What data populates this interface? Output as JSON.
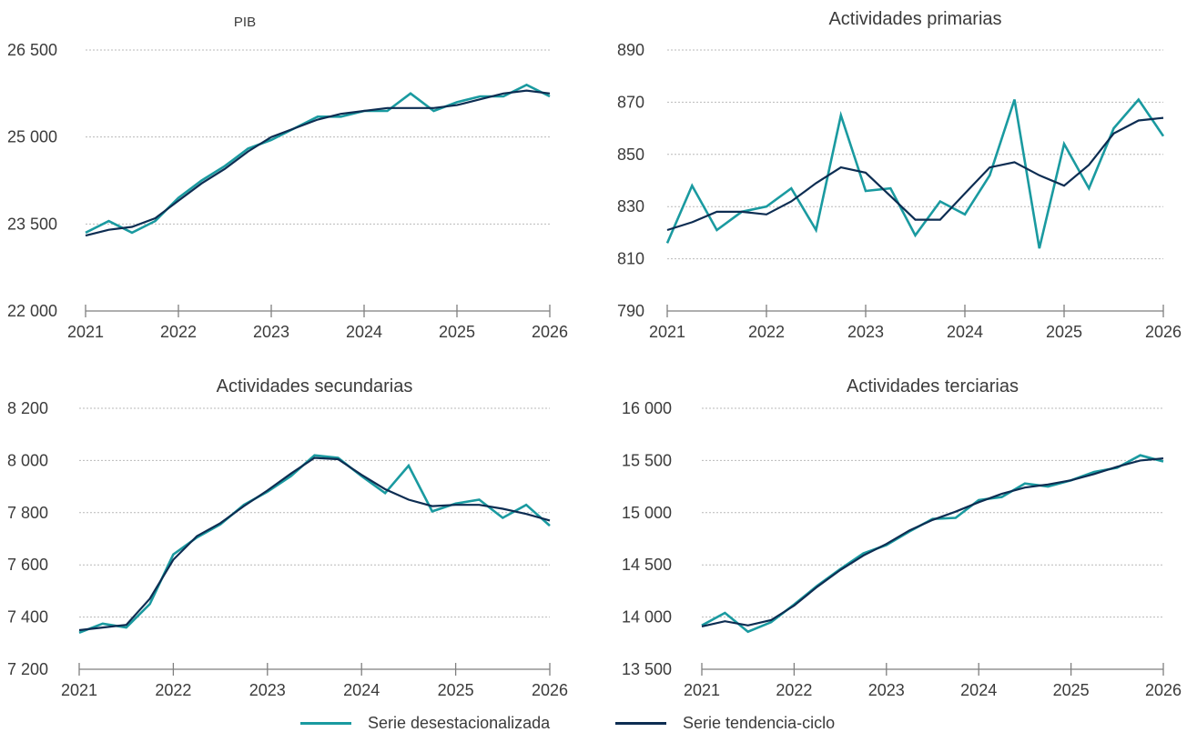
{
  "colors": {
    "desestacionalizada": "#1a9aa0",
    "tendencia": "#0d2d52",
    "axis": "#7f7f7f",
    "grid": "#b9b9b9",
    "text": "#3b3b3b"
  },
  "legend": {
    "series_1": "Serie desestacionalizada",
    "series_2": "Serie tendencia-ciclo"
  },
  "chart_data": [
    {
      "type": "line",
      "title": "PIB",
      "xlabel": "",
      "ylabel": "",
      "xlim": [
        2021,
        2026
      ],
      "ylim": [
        22000,
        26500
      ],
      "x_ticks": [
        "2021",
        "2022",
        "2023",
        "2024",
        "2025",
        "2026"
      ],
      "y_ticks": [
        "22 000",
        "23 500",
        "25 000",
        "26 500"
      ],
      "grid": true,
      "x": [
        2021.0,
        2021.25,
        2021.5,
        2021.75,
        2022.0,
        2022.25,
        2022.5,
        2022.75,
        2023.0,
        2023.25,
        2023.5,
        2023.75,
        2024.0,
        2024.25,
        2024.5,
        2024.75,
        2025.0,
        2025.25,
        2025.5,
        2025.75,
        2026.0
      ],
      "series": [
        {
          "name": "Serie desestacionalizada",
          "values": [
            23350,
            23550,
            23350,
            23550,
            23950,
            24250,
            24500,
            24800,
            24950,
            25150,
            25350,
            25350,
            25450,
            25450,
            25750,
            25450,
            25600,
            25700,
            25700,
            25900,
            25700
          ]
        },
        {
          "name": "Serie tendencia-ciclo",
          "values": [
            23300,
            23400,
            23450,
            23600,
            23900,
            24200,
            24450,
            24750,
            25000,
            25150,
            25300,
            25400,
            25450,
            25500,
            25500,
            25500,
            25550,
            25650,
            25750,
            25800,
            25750
          ]
        }
      ]
    },
    {
      "type": "line",
      "title": "Actividades primarias",
      "xlabel": "",
      "ylabel": "",
      "xlim": [
        2021,
        2026
      ],
      "ylim": [
        790,
        890
      ],
      "x_ticks": [
        "2021",
        "2022",
        "2023",
        "2024",
        "2025",
        "2026"
      ],
      "y_ticks": [
        "790",
        "810",
        "830",
        "850",
        "870",
        "890"
      ],
      "grid": true,
      "x": [
        2021.0,
        2021.25,
        2021.5,
        2021.75,
        2022.0,
        2022.25,
        2022.5,
        2022.75,
        2023.0,
        2023.25,
        2023.5,
        2023.75,
        2024.0,
        2024.25,
        2024.5,
        2024.75,
        2025.0,
        2025.25,
        2025.5,
        2025.75,
        2026.0
      ],
      "series": [
        {
          "name": "Serie desestacionalizada",
          "values": [
            816,
            838,
            821,
            828,
            830,
            837,
            821,
            865,
            836,
            837,
            819,
            832,
            827,
            842,
            871,
            814,
            854,
            837,
            860,
            871,
            857
          ]
        },
        {
          "name": "Serie tendencia-ciclo",
          "values": [
            821,
            824,
            828,
            828,
            827,
            832,
            839,
            845,
            843,
            834,
            825,
            825,
            835,
            845,
            847,
            842,
            838,
            846,
            858,
            863,
            864
          ]
        }
      ]
    },
    {
      "type": "line",
      "title": "Actividades secundarias",
      "xlabel": "",
      "ylabel": "",
      "xlim": [
        2021,
        2026
      ],
      "ylim": [
        7200,
        8200
      ],
      "x_ticks": [
        "2021",
        "2022",
        "2023",
        "2024",
        "2025",
        "2026"
      ],
      "y_ticks": [
        "7 200",
        "7 400",
        "7 600",
        "7 800",
        "8 000",
        "8 200"
      ],
      "grid": true,
      "x": [
        2021.0,
        2021.25,
        2021.5,
        2021.75,
        2022.0,
        2022.25,
        2022.5,
        2022.75,
        2023.0,
        2023.25,
        2023.5,
        2023.75,
        2024.0,
        2024.25,
        2024.5,
        2024.75,
        2025.0,
        2025.25,
        2025.5,
        2025.75,
        2026.0
      ],
      "series": [
        {
          "name": "Serie desestacionalizada",
          "values": [
            7340,
            7375,
            7360,
            7450,
            7640,
            7705,
            7755,
            7830,
            7880,
            7940,
            8020,
            8010,
            7940,
            7875,
            7980,
            7805,
            7835,
            7850,
            7780,
            7830,
            7750
          ]
        },
        {
          "name": "Serie tendencia-ciclo",
          "values": [
            7350,
            7360,
            7370,
            7470,
            7620,
            7710,
            7760,
            7825,
            7885,
            7950,
            8010,
            8005,
            7945,
            7890,
            7850,
            7825,
            7830,
            7830,
            7815,
            7795,
            7770
          ]
        }
      ]
    },
    {
      "type": "line",
      "title": "Actividades terciarias",
      "xlabel": "",
      "ylabel": "",
      "xlim": [
        2021,
        2026
      ],
      "ylim": [
        13500,
        16000
      ],
      "x_ticks": [
        "2021",
        "2022",
        "2023",
        "2024",
        "2025",
        "2026"
      ],
      "y_ticks": [
        "13 500",
        "14 000",
        "14 500",
        "15 000",
        "15 500",
        "16 000"
      ],
      "grid": true,
      "x": [
        2021.0,
        2021.25,
        2021.5,
        2021.75,
        2022.0,
        2022.25,
        2022.5,
        2022.75,
        2023.0,
        2023.25,
        2023.5,
        2023.75,
        2024.0,
        2024.25,
        2024.5,
        2024.75,
        2025.0,
        2025.25,
        2025.5,
        2025.75,
        2026.0
      ],
      "series": [
        {
          "name": "Serie desestacionalizada",
          "values": [
            13920,
            14040,
            13860,
            13950,
            14120,
            14300,
            14460,
            14610,
            14690,
            14820,
            14940,
            14950,
            15120,
            15150,
            15280,
            15250,
            15310,
            15390,
            15430,
            15550,
            15490
          ]
        },
        {
          "name": "Serie tendencia-ciclo",
          "values": [
            13910,
            13960,
            13920,
            13970,
            14110,
            14290,
            14450,
            14590,
            14700,
            14830,
            14930,
            15010,
            15100,
            15180,
            15240,
            15270,
            15310,
            15370,
            15440,
            15500,
            15520
          ]
        }
      ]
    }
  ]
}
